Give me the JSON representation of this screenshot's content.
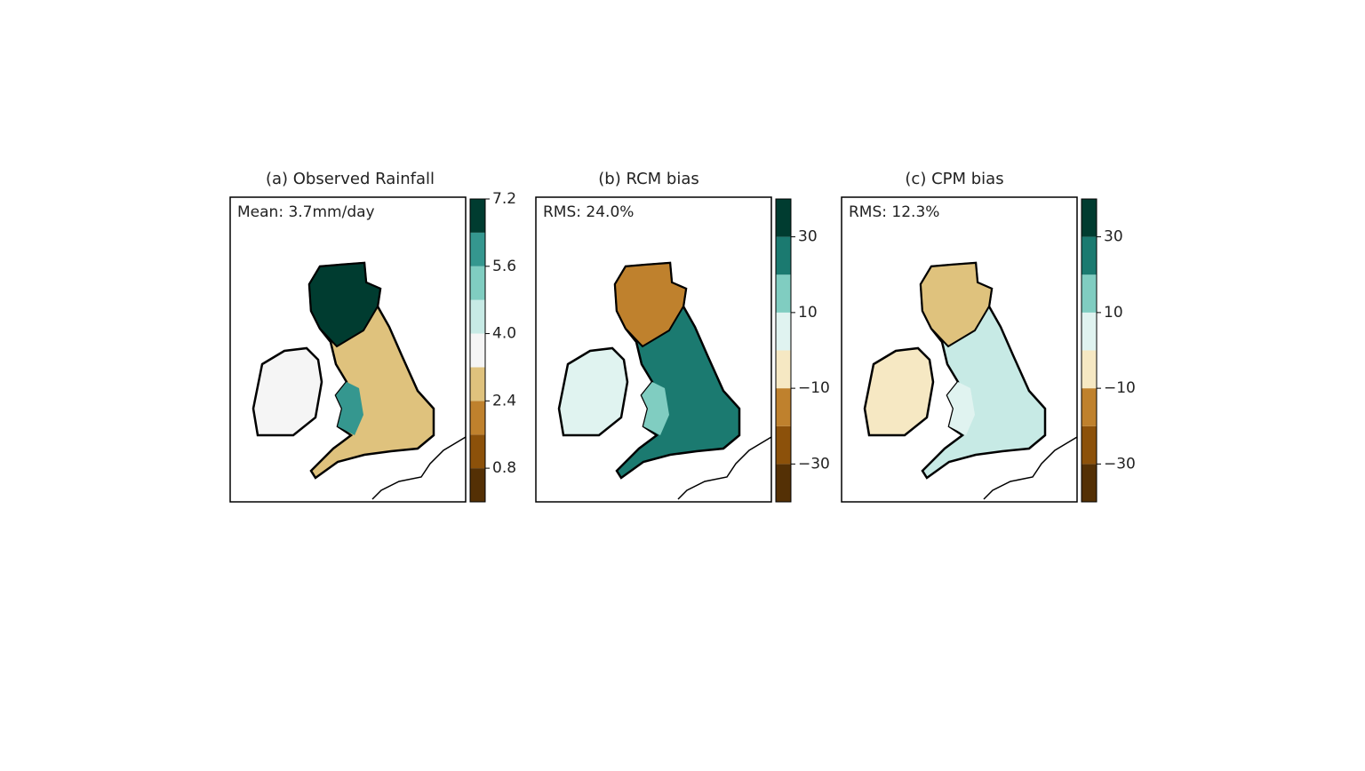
{
  "chart_data": [
    {
      "type": "map",
      "title": "(a) Observed Rainfall",
      "annotation": "Mean: 3.7mm/day",
      "ylim": [
        0,
        7.2
      ],
      "levels": [
        0,
        0.8,
        1.6,
        2.4,
        3.2,
        4.0,
        4.8,
        5.6,
        6.4,
        7.2
      ],
      "colors": [
        "#543005",
        "#8c510a",
        "#bf812d",
        "#dfc27d",
        "#f5f5f5",
        "#c7eae5",
        "#80cdc1",
        "#35978f",
        "#003c30"
      ],
      "yticks": [
        0.8,
        2.4,
        {
          "value": 4,
          "label": "4.0"
        },
        5.6,
        7.2
      ]
    },
    {
      "type": "map",
      "title": "(b) RCM bias",
      "annotation": "RMS: 24.0%",
      "ylim": [
        -40,
        40
      ],
      "levels": [
        -40,
        -30,
        -20,
        -10,
        0,
        10,
        20,
        30,
        40
      ],
      "colors": [
        "#543005",
        "#8c510a",
        "#bf812d",
        "#f6e8c3",
        "#e0f3f0",
        "#80cdc1",
        "#1b7a70",
        "#003c30"
      ],
      "yticks": [
        {
          "value": -30,
          "label": "−30"
        },
        {
          "value": -10,
          "label": "−10"
        },
        10,
        30
      ]
    },
    {
      "type": "map",
      "title": "(c) CPM bias",
      "annotation": "RMS: 12.3%",
      "ylim": [
        -40,
        40
      ],
      "levels": [
        -40,
        -30,
        -20,
        -10,
        0,
        10,
        20,
        30,
        40
      ],
      "colors": [
        "#543005",
        "#8c510a",
        "#bf812d",
        "#f6e8c3",
        "#e0f3f0",
        "#80cdc1",
        "#1b7a70",
        "#003c30"
      ],
      "yticks": [
        {
          "value": -30,
          "label": "−30"
        },
        {
          "value": -10,
          "label": "−10"
        },
        10,
        30
      ]
    }
  ]
}
